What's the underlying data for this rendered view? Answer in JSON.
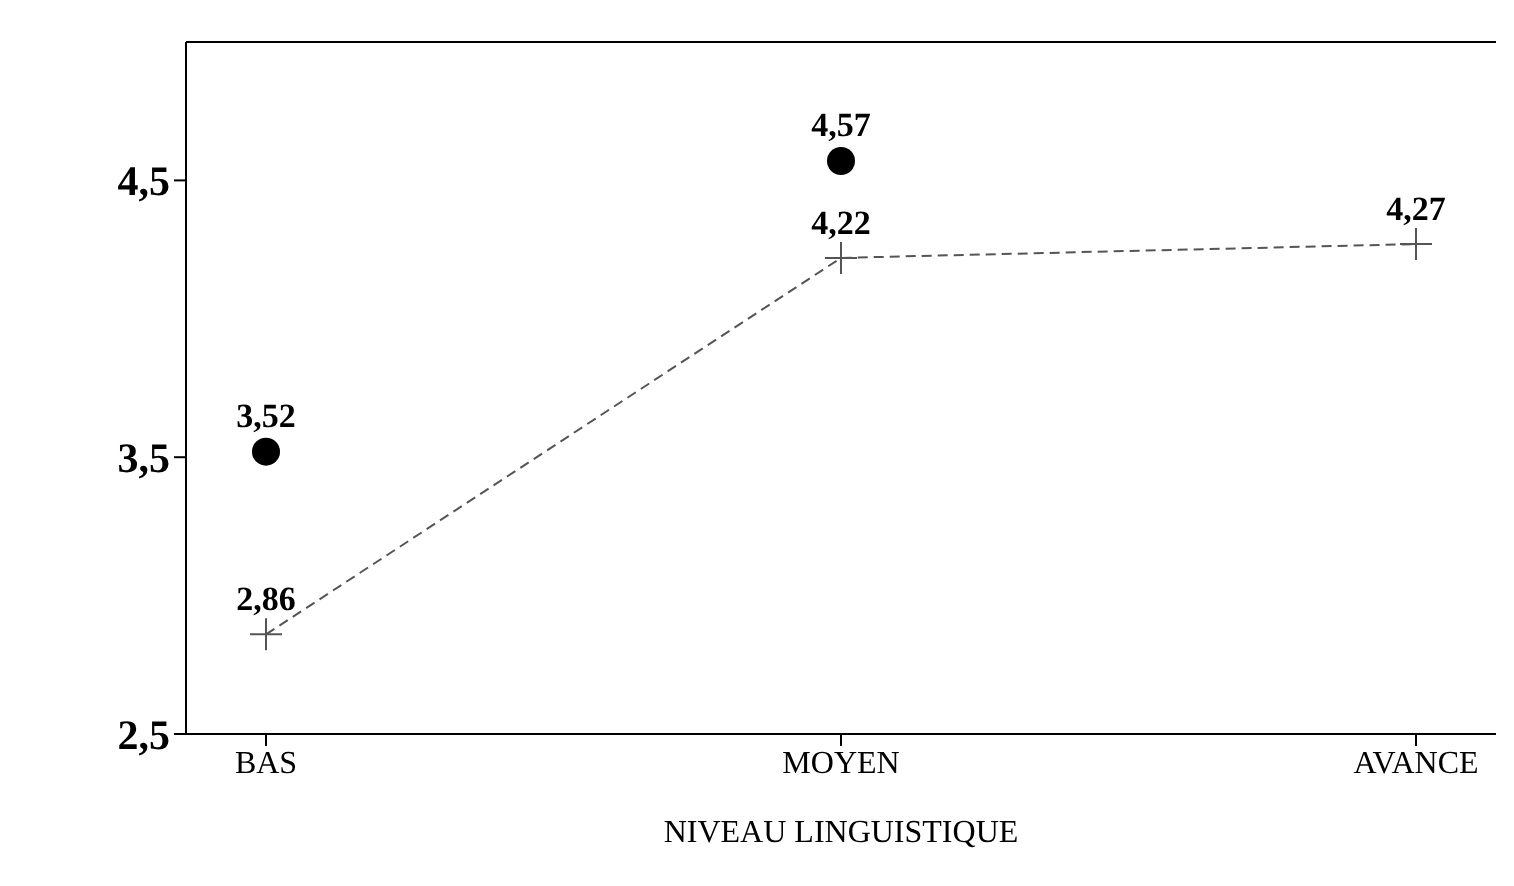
{
  "chart_data": {
    "type": "line",
    "xlabel": "NIVEAU LINGUISTIQUE",
    "categories": [
      "BAS",
      "MOYEN",
      "AVANCE"
    ],
    "series": [
      {
        "color": "#555555",
        "values": [
          2.86,
          4.22,
          4.27
        ],
        "value_labels": [
          "2,86",
          "4,22",
          "4,27"
        ],
        "marker": "cross",
        "line_style": "dashed"
      },
      {
        "type": "scatter",
        "color": "#000000",
        "values": [
          3.52,
          4.57,
          null
        ],
        "value_labels": [
          "3,52",
          "4,57",
          null
        ],
        "marker": "circle"
      }
    ],
    "ylim": [
      2.5,
      5.0
    ],
    "yticks": [
      {
        "value": 2.5,
        "label": "2,5"
      },
      {
        "value": 3.5,
        "label": "3,5"
      },
      {
        "value": 4.5,
        "label": "4,5"
      }
    ],
    "grid": false,
    "legend": false
  }
}
